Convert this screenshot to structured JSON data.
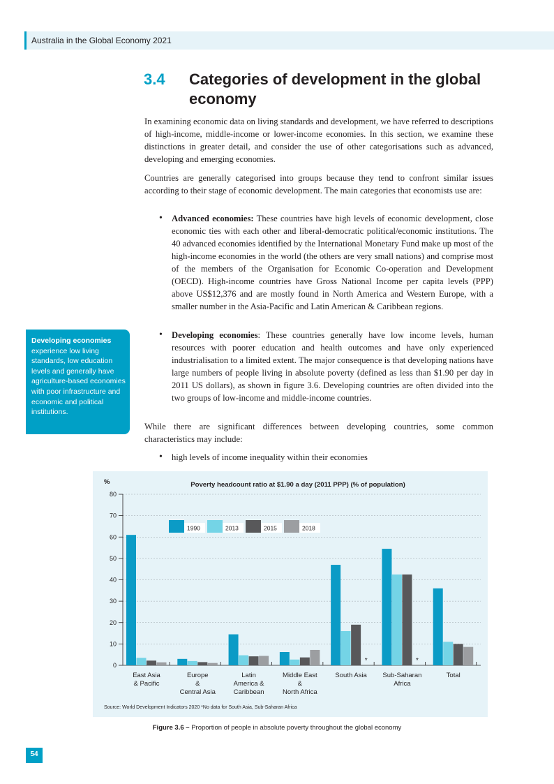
{
  "header": {
    "title": "Australia in the Global Economy 2021"
  },
  "section": {
    "number": "3.4",
    "title": "Categories of development in the global economy"
  },
  "paragraphs": [
    "In examining economic data on living standards and development, we have referred to descriptions of high-income, middle-income or lower-income economies. In this section, we examine these distinctions in greater detail, and consider the use of other categorisations such as advanced, developing and emerging economies.",
    "Countries are generally categorised into groups because they tend to confront similar issues according to their stage of economic development. The main categories that economists use are:"
  ],
  "bullets": [
    {
      "term": "Advanced economies:",
      "text": " These countries have high levels of economic development, close economic ties with each other and liberal-democratic political/economic institutions. The 40 advanced economies identified by the International Monetary Fund make up most of the high-income economies in the world (the others are very small nations) and comprise most of the members of the Organisation for Economic Co-operation and Development (OECD). High-income countries have Gross National Income per capita levels (PPP) above US$12,376 and are mostly found in North America and Western Europe, with a smaller number in the Asia-Pacific and Latin American & Caribbean regions."
    },
    {
      "term": "Developing economies",
      "text": ": These countries generally have low income levels, human resources with poorer education and health outcomes and have only experienced industrialisation to a limited extent. The major consequence is that developing nations have large numbers of people living in absolute poverty (defined as less than $1.90 per day in 2011 US dollars), as shown in figure 3.6. Developing countries are often divided into the two groups of low-income and middle-income countries."
    }
  ],
  "paragraph3": "While there are significant differences between developing countries, some common characteristics may include:",
  "bullet3": "high levels of income inequality within their economies",
  "sidebar": {
    "title": "Developing economies",
    "text": "experience low living standards, low education levels and generally have agriculture-based economies with poor infrastructure and economic and political institutions."
  },
  "colors": {
    "accent": "#00a0c6",
    "light": "#e6f3f8",
    "s1990": "#0b9bc6",
    "s2013": "#74d4e6",
    "s2015": "#58585a",
    "s2018": "#9c9ea1"
  },
  "chart_data": {
    "type": "bar",
    "title": "Poverty headcount ratio at $1.90 a day (2011 PPP) (% of population)",
    "ylabel": "%",
    "ylim": [
      0,
      80
    ],
    "yticks": [
      0,
      10,
      20,
      30,
      40,
      50,
      60,
      70,
      80
    ],
    "legend_position": "top-left",
    "grid": true,
    "categories": [
      [
        "East Asia",
        "& Pacific"
      ],
      [
        "Europe",
        "&",
        "Central Asia"
      ],
      [
        "Latin",
        "America &",
        "Caribbean"
      ],
      [
        "Middle East",
        "&",
        "North Africa"
      ],
      [
        "South Asia"
      ],
      [
        "Sub-Saharan",
        "Africa"
      ],
      [
        "Total"
      ]
    ],
    "series": [
      {
        "name": "1990",
        "values": [
          61,
          3,
          14.5,
          6.2,
          47,
          54.5,
          36
        ]
      },
      {
        "name": "2013",
        "values": [
          3.5,
          2,
          4.7,
          2.7,
          16,
          42.5,
          11
        ]
      },
      {
        "name": "2015",
        "values": [
          2.2,
          1.5,
          4.2,
          3.7,
          19,
          42.5,
          10
        ]
      },
      {
        "name": "2018",
        "values": [
          1.4,
          1.1,
          4.4,
          7.2,
          null,
          null,
          8.6
        ]
      }
    ],
    "annotations": [
      {
        "category": "South Asia",
        "series": "2018",
        "text": "*"
      },
      {
        "category": "Sub-Saharan Africa",
        "series": "2018",
        "text": "*"
      }
    ],
    "source": "Source: World Development Indicators 2020 *No data for South Asia, Sub-Saharan Africa"
  },
  "caption": {
    "label": "Figure 3.6 –",
    "text": " Proportion of people in absolute poverty throughout the global economy"
  },
  "page_number": "54"
}
